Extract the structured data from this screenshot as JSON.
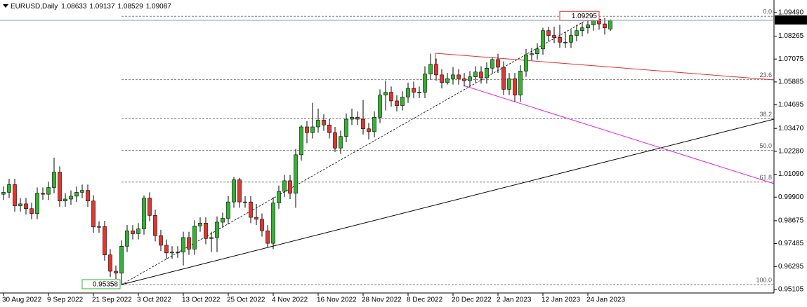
{
  "chart_data": {
    "type": "candlestick",
    "title": "EURUSD,Daily",
    "categories": [
      "30 Aug 2022",
      null,
      null,
      null,
      null,
      null,
      null,
      null,
      "9 Sep 2022",
      null,
      null,
      null,
      null,
      null,
      null,
      null,
      "21 Sep 2022",
      null,
      null,
      null,
      null,
      null,
      null,
      null,
      "3 Oct 2022",
      null,
      null,
      null,
      null,
      null,
      null,
      null,
      "13 Oct 2022",
      null,
      null,
      null,
      null,
      null,
      null,
      null,
      "25 Oct 2022",
      null,
      null,
      null,
      null,
      null,
      null,
      null,
      "4 Nov 2022",
      null,
      null,
      null,
      null,
      null,
      null,
      null,
      "16 Nov 2022",
      null,
      null,
      null,
      null,
      null,
      null,
      null,
      "28 Nov 2022",
      null,
      null,
      null,
      null,
      null,
      null,
      null,
      "8 Dec 2022",
      null,
      null,
      null,
      null,
      null,
      null,
      null,
      "20 Dec 2022",
      null,
      null,
      null,
      null,
      null,
      null,
      null,
      "2 Jan 2023",
      null,
      null,
      null,
      null,
      null,
      null,
      null,
      "12 Jan 2023",
      null,
      null,
      null,
      null,
      null,
      null,
      null,
      "24 Jan 2023",
      null,
      null,
      null,
      null
    ],
    "open": [
      1.0005,
      1.0015,
      1.0055,
      0.9945,
      0.9955,
      0.993,
      0.9905,
      1.001,
      1.0005,
      1.004,
      1.012,
      0.997,
      0.998,
      0.9995,
      1.0015,
      1.0025,
      0.997,
      0.9835,
      0.9837,
      0.969,
      0.9605,
      0.9595,
      0.9735,
      0.9815,
      0.98,
      0.9825,
      0.9985,
      0.9895,
      0.979,
      0.974,
      0.97,
      0.9705,
      0.9705,
      0.978,
      0.972,
      0.984,
      0.9855,
      0.9775,
      0.978,
      0.986,
      0.988,
      0.9965,
      1.008,
      0.9965,
      0.9965,
      0.9885,
      0.9875,
      0.9815,
      0.975,
      0.996,
      1.002,
      1.0075,
      1.001,
      1.021,
      1.0355,
      1.0325,
      1.0355,
      1.039,
      1.0365,
      1.0325,
      1.0245,
      1.0305,
      1.0395,
      1.0405,
      1.0395,
      1.0345,
      1.033,
      1.0405,
      1.052,
      1.0535,
      1.049,
      1.0465,
      1.051,
      1.0555,
      1.0535,
      1.0535,
      1.063,
      1.068,
      1.0625,
      1.0585,
      1.0605,
      1.0625,
      1.0605,
      1.0595,
      1.0615,
      1.064,
      1.061,
      1.066,
      1.0705,
      1.0665,
      1.055,
      1.0605,
      1.052,
      1.0645,
      1.073,
      1.0735,
      1.076,
      1.0855,
      1.083,
      1.082,
      1.0795,
      1.0795,
      1.083,
      1.0855,
      1.087,
      1.0885,
      1.0915,
      1.089,
      1.08633
    ],
    "high": [
      1.0045,
      1.0085,
      1.0085,
      0.9985,
      0.9985,
      0.996,
      1.004,
      1.004,
      1.007,
      1.0195,
      1.015,
      1.001,
      1.0025,
      1.0045,
      1.0055,
      1.0055,
      1.0,
      0.9865,
      0.9867,
      0.972,
      0.9635,
      0.9765,
      0.9845,
      0.9845,
      0.9855,
      0.9999,
      1.0015,
      0.9925,
      0.982,
      0.977,
      0.9735,
      0.9735,
      0.981,
      0.981,
      0.987,
      0.9885,
      0.9885,
      0.981,
      0.989,
      0.991,
      0.9995,
      1.0095,
      1.009,
      0.9995,
      0.9995,
      0.9955,
      0.9905,
      0.9845,
      0.999,
      1.005,
      1.0105,
      1.0105,
      1.024,
      1.0365,
      1.0385,
      1.048,
      1.045,
      1.042,
      1.0395,
      1.0355,
      1.0335,
      1.0425,
      1.045,
      1.0435,
      1.0495,
      1.0375,
      1.0435,
      1.055,
      1.0595,
      1.0565,
      1.052,
      1.054,
      1.0585,
      1.059,
      1.0565,
      1.067,
      1.0735,
      1.071,
      1.0655,
      1.0635,
      1.0665,
      1.0655,
      1.0635,
      1.0645,
      1.067,
      1.067,
      1.069,
      1.0715,
      1.0735,
      1.0695,
      1.0635,
      1.0635,
      1.0675,
      1.076,
      1.0765,
      1.079,
      1.087,
      1.0875,
      1.0875,
      1.0885,
      1.085,
      1.086,
      1.0885,
      1.09,
      1.0915,
      1.0929,
      1.0929,
      1.092,
      1.09137
    ],
    "low": [
      0.9975,
      0.9985,
      0.9915,
      0.9915,
      0.99,
      0.9875,
      0.9875,
      0.9975,
      0.9975,
      1.001,
      0.994,
      0.994,
      0.995,
      0.9965,
      0.9985,
      0.994,
      0.9805,
      0.9805,
      0.966,
      0.9575,
      0.9565,
      0.9536,
      0.9705,
      0.977,
      0.977,
      0.9795,
      0.9865,
      0.976,
      0.971,
      0.967,
      0.967,
      0.9675,
      0.9635,
      0.969,
      0.969,
      0.981,
      0.9745,
      0.9705,
      0.9705,
      0.983,
      0.985,
      0.9935,
      0.9935,
      0.9935,
      0.9855,
      0.9845,
      0.9785,
      0.973,
      0.972,
      0.993,
      0.999,
      0.998,
      0.9935,
      1.018,
      1.027,
      1.0295,
      1.0325,
      1.0335,
      1.0295,
      1.0225,
      1.0215,
      1.0275,
      1.0365,
      1.0365,
      1.0315,
      1.029,
      1.03,
      1.0375,
      1.044,
      1.046,
      1.0435,
      1.044,
      1.048,
      1.0505,
      1.0505,
      1.0505,
      1.06,
      1.0595,
      1.0555,
      1.0575,
      1.0575,
      1.0575,
      1.0565,
      1.0565,
      1.0585,
      1.058,
      1.058,
      1.063,
      1.0635,
      1.052,
      1.052,
      1.0485,
      1.0485,
      1.0615,
      1.07,
      1.0705,
      1.073,
      1.08,
      1.079,
      1.0765,
      1.0765,
      1.0765,
      1.08,
      1.0825,
      1.084,
      1.0855,
      1.086,
      1.0835,
      1.08529
    ],
    "close": [
      1.0015,
      1.0055,
      0.9945,
      0.9955,
      0.993,
      0.9905,
      1.001,
      1.0005,
      1.004,
      1.012,
      0.997,
      0.998,
      0.9995,
      1.0015,
      1.0025,
      0.997,
      0.9835,
      0.9837,
      0.969,
      0.9605,
      0.9595,
      0.9735,
      0.9815,
      0.98,
      0.9825,
      0.9985,
      0.9895,
      0.979,
      0.974,
      0.97,
      0.9705,
      0.9705,
      0.978,
      0.972,
      0.984,
      0.9855,
      0.9775,
      0.978,
      0.986,
      0.988,
      0.9965,
      1.008,
      0.9965,
      0.9965,
      0.9885,
      0.9875,
      0.9815,
      0.975,
      0.996,
      1.002,
      1.0075,
      1.001,
      1.021,
      1.0355,
      1.0325,
      1.0355,
      1.039,
      1.0365,
      1.0325,
      1.0245,
      1.0305,
      1.0395,
      1.0405,
      1.0395,
      1.0345,
      1.033,
      1.0405,
      1.052,
      1.0535,
      1.049,
      1.0465,
      1.051,
      1.0555,
      1.0535,
      1.0535,
      1.063,
      1.068,
      1.0625,
      1.0585,
      1.0605,
      1.0625,
      1.0605,
      1.0595,
      1.0615,
      1.064,
      1.061,
      1.066,
      1.0705,
      1.0665,
      1.055,
      1.0605,
      1.052,
      1.0645,
      1.073,
      1.0735,
      1.076,
      1.0855,
      1.083,
      1.082,
      1.0795,
      1.0795,
      1.083,
      1.0855,
      1.087,
      1.0885,
      1.0915,
      1.089,
      1.087,
      1.09087
    ],
    "up_color": "#2fb52f",
    "down_color": "#e8332c",
    "ylim": [
      0.9492,
      1.0996
    ],
    "yticks": [
      {
        "value": 1.0949,
        "label": "1.09490"
      },
      1.08265,
      1.07075,
      1.05885,
      1.04695,
      {
        "value": 1.0347,
        "label": "1.03470"
      },
      {
        "value": 1.0228,
        "label": "1.02280"
      },
      {
        "value": 1.0109,
        "label": "1.01090"
      },
      {
        "value": 0.999,
        "label": "0.99900"
      },
      0.98675,
      0.97485,
      0.96295,
      0.95105
    ],
    "fibonacci": {
      "high": 1.09295,
      "low": 0.95358,
      "color": "#808080",
      "levels": [
        {
          "value": 0,
          "label": "0.0"
        },
        23.6,
        38.2,
        {
          "value": 50,
          "label": "50.0"
        },
        61.8,
        {
          "value": 100,
          "label": "100.0"
        }
      ]
    }
  }
}
